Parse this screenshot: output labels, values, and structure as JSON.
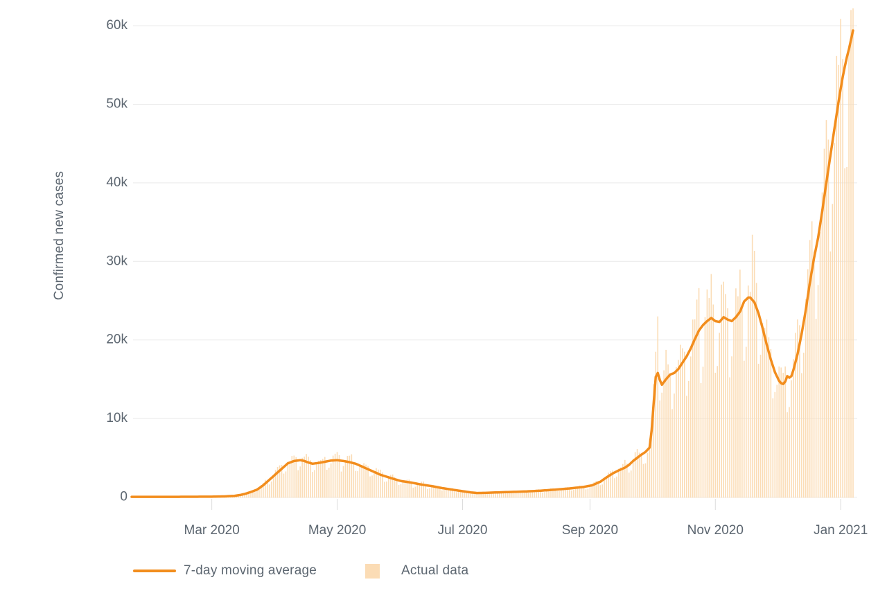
{
  "chart_data": {
    "type": "line",
    "title": "",
    "ylabel": "Confirmed new cases",
    "xlabel": "",
    "x_start_date": "2020-01-22",
    "x_end_date": "2021-01-07",
    "total_days": 352,
    "ylim": [
      0,
      62500
    ],
    "grid": "horizontal",
    "legend_position": "bottom",
    "y_ticks": [
      {
        "value": 0,
        "label": "0"
      },
      {
        "value": 10000,
        "label": "10k"
      },
      {
        "value": 20000,
        "label": "20k"
      },
      {
        "value": 30000,
        "label": "30k"
      },
      {
        "value": 40000,
        "label": "40k"
      },
      {
        "value": 50000,
        "label": "50k"
      },
      {
        "value": 60000,
        "label": "60k"
      }
    ],
    "x_ticks": [
      {
        "day": 39,
        "label": "Mar 2020"
      },
      {
        "day": 100,
        "label": "May 2020"
      },
      {
        "day": 161,
        "label": "Jul 2020"
      },
      {
        "day": 223,
        "label": "Sep 2020"
      },
      {
        "day": 284,
        "label": "Nov 2020"
      },
      {
        "day": 345,
        "label": "Jan 2021"
      }
    ],
    "series": [
      {
        "name": "7-day moving average",
        "type": "line",
        "color": "#f28d1d",
        "points_day_value": [
          [
            0,
            30
          ],
          [
            15,
            30
          ],
          [
            30,
            45
          ],
          [
            39,
            60
          ],
          [
            45,
            90
          ],
          [
            50,
            160
          ],
          [
            53,
            280
          ],
          [
            55,
            400
          ],
          [
            58,
            650
          ],
          [
            61,
            950
          ],
          [
            64,
            1500
          ],
          [
            67,
            2200
          ],
          [
            70,
            2900
          ],
          [
            73,
            3600
          ],
          [
            76,
            4300
          ],
          [
            79,
            4600
          ],
          [
            82,
            4700
          ],
          [
            84,
            4600
          ],
          [
            86,
            4400
          ],
          [
            88,
            4250
          ],
          [
            91,
            4350
          ],
          [
            94,
            4500
          ],
          [
            97,
            4650
          ],
          [
            100,
            4700
          ],
          [
            103,
            4600
          ],
          [
            106,
            4450
          ],
          [
            109,
            4250
          ],
          [
            112,
            3900
          ],
          [
            115,
            3550
          ],
          [
            118,
            3200
          ],
          [
            121,
            2850
          ],
          [
            124,
            2600
          ],
          [
            127,
            2350
          ],
          [
            131,
            2050
          ],
          [
            136,
            1850
          ],
          [
            141,
            1600
          ],
          [
            146,
            1400
          ],
          [
            151,
            1150
          ],
          [
            156,
            950
          ],
          [
            161,
            750
          ],
          [
            165,
            600
          ],
          [
            168,
            520
          ],
          [
            172,
            540
          ],
          [
            178,
            600
          ],
          [
            185,
            660
          ],
          [
            192,
            720
          ],
          [
            199,
            820
          ],
          [
            206,
            950
          ],
          [
            213,
            1100
          ],
          [
            220,
            1300
          ],
          [
            224,
            1500
          ],
          [
            228,
            1950
          ],
          [
            231,
            2500
          ],
          [
            234,
            3000
          ],
          [
            237,
            3400
          ],
          [
            240,
            3750
          ],
          [
            242,
            4100
          ],
          [
            244,
            4600
          ],
          [
            246,
            5000
          ],
          [
            248,
            5400
          ],
          [
            250,
            5750
          ],
          [
            252,
            6300
          ],
          [
            253,
            8500
          ],
          [
            254,
            12000
          ],
          [
            255,
            15300
          ],
          [
            256,
            15800
          ],
          [
            257,
            14900
          ],
          [
            258,
            14300
          ],
          [
            260,
            15000
          ],
          [
            262,
            15600
          ],
          [
            264,
            15800
          ],
          [
            266,
            16300
          ],
          [
            268,
            17100
          ],
          [
            270,
            17900
          ],
          [
            272,
            18900
          ],
          [
            274,
            20100
          ],
          [
            276,
            21200
          ],
          [
            278,
            21900
          ],
          [
            280,
            22400
          ],
          [
            282,
            22800
          ],
          [
            284,
            22400
          ],
          [
            286,
            22300
          ],
          [
            288,
            22900
          ],
          [
            290,
            22600
          ],
          [
            292,
            22400
          ],
          [
            294,
            22900
          ],
          [
            296,
            23600
          ],
          [
            298,
            24900
          ],
          [
            300,
            25400
          ],
          [
            301,
            25400
          ],
          [
            303,
            24800
          ],
          [
            305,
            23400
          ],
          [
            307,
            21500
          ],
          [
            309,
            19400
          ],
          [
            311,
            17500
          ],
          [
            313,
            15900
          ],
          [
            315,
            14800
          ],
          [
            316,
            14500
          ],
          [
            317,
            14400
          ],
          [
            318,
            14700
          ],
          [
            319,
            15400
          ],
          [
            320,
            15200
          ],
          [
            321,
            15400
          ],
          [
            322,
            16200
          ],
          [
            324,
            18200
          ],
          [
            326,
            20800
          ],
          [
            328,
            23800
          ],
          [
            330,
            27300
          ],
          [
            332,
            30400
          ],
          [
            334,
            33000
          ],
          [
            336,
            36400
          ],
          [
            338,
            40000
          ],
          [
            340,
            43500
          ],
          [
            342,
            47000
          ],
          [
            344,
            50400
          ],
          [
            345,
            52000
          ],
          [
            346,
            53500
          ],
          [
            347,
            54800
          ],
          [
            348,
            56000
          ],
          [
            349,
            57000
          ],
          [
            350,
            58200
          ],
          [
            351,
            59400
          ]
        ]
      },
      {
        "name": "Actual data",
        "type": "bar",
        "color": "#fbdcb5",
        "note": "daily reported new cases fluctuating around the 7-day moving average",
        "weekday_factors_sun_to_sat": [
          0.72,
          0.79,
          0.99,
          1.1,
          1.15,
          1.17,
          1.05
        ],
        "start_weekday_index": 3,
        "noise_seed": 7,
        "noise_base": 0.93,
        "noise_amplitude": 0.16,
        "spike_overrides": {
          "255": 18500,
          "256": 23000,
          "276": 26600,
          "302": 33400,
          "344": 55000,
          "350": 62000
        }
      }
    ]
  },
  "legend": {
    "items": [
      {
        "label": "7-day moving average",
        "swatch": "line",
        "color": "#f28d1d"
      },
      {
        "label": "Actual data",
        "swatch": "square",
        "color": "#fbdcb5"
      }
    ]
  },
  "colors": {
    "line": "#f28d1d",
    "bar": "#fbdcb5",
    "text": "#5c6670",
    "grid": "#e9e9e9",
    "axis_tick": "#dcdcdc",
    "background": "#ffffff"
  }
}
